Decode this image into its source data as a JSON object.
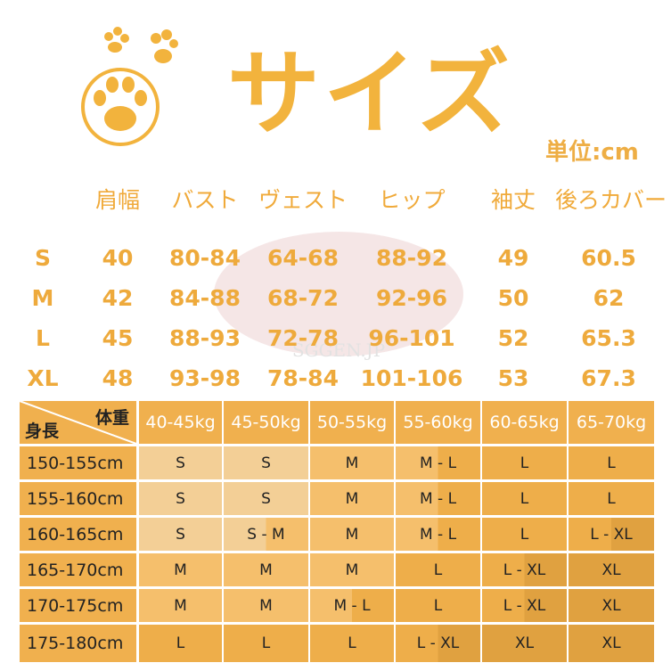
{
  "title": "サイズ",
  "unit": "単位:cm",
  "measure_table": {
    "headers": [
      "",
      "肩幅",
      "バスト",
      "ヴェスト",
      "ヒップ",
      "袖丈",
      "後ろカバー"
    ],
    "rows": [
      [
        "S",
        "40",
        "80-84",
        "64-68",
        "88-92",
        "49",
        "60.5"
      ],
      [
        "M",
        "42",
        "84-88",
        "68-72",
        "92-96",
        "50",
        "62"
      ],
      [
        "L",
        "45",
        "88-93",
        "72-78",
        "96-101",
        "52",
        "65.3"
      ],
      [
        "XL",
        "48",
        "93-98",
        "78-84",
        "101-106",
        "53",
        "67.3"
      ]
    ]
  },
  "fit_table": {
    "corner_top": "体重",
    "corner_bottom": "身長",
    "weights": [
      "40-45kg",
      "45-50kg",
      "50-55kg",
      "55-60kg",
      "60-65kg",
      "65-70kg"
    ],
    "rows": [
      {
        "height": "150-155cm",
        "sizes": [
          "S",
          "S",
          "M",
          "M - L",
          "L",
          "L"
        ]
      },
      {
        "height": "155-160cm",
        "sizes": [
          "S",
          "S",
          "M",
          "M - L",
          "L",
          "L"
        ]
      },
      {
        "height": "160-165cm",
        "sizes": [
          "S",
          "S - M",
          "M",
          "M - L",
          "L",
          "L - XL"
        ]
      },
      {
        "height": "165-170cm",
        "sizes": [
          "M",
          "M",
          "M",
          "L",
          "L - XL",
          "XL"
        ]
      },
      {
        "height": "170-175cm",
        "sizes": [
          "M",
          "M",
          "M - L",
          "L",
          "L - XL",
          "XL"
        ]
      },
      {
        "height": "175-180cm",
        "sizes": [
          "L",
          "L",
          "L",
          "L - XL",
          "XL",
          "XL"
        ]
      }
    ]
  },
  "colors": {
    "S": "#f3cf96",
    "M": "#f5bf6c",
    "L": "#eeae4a",
    "XL": "#e0a140",
    "header": "#f0b04e",
    "accent": "#f2b33d"
  },
  "watermark": "SGGEN.JP"
}
